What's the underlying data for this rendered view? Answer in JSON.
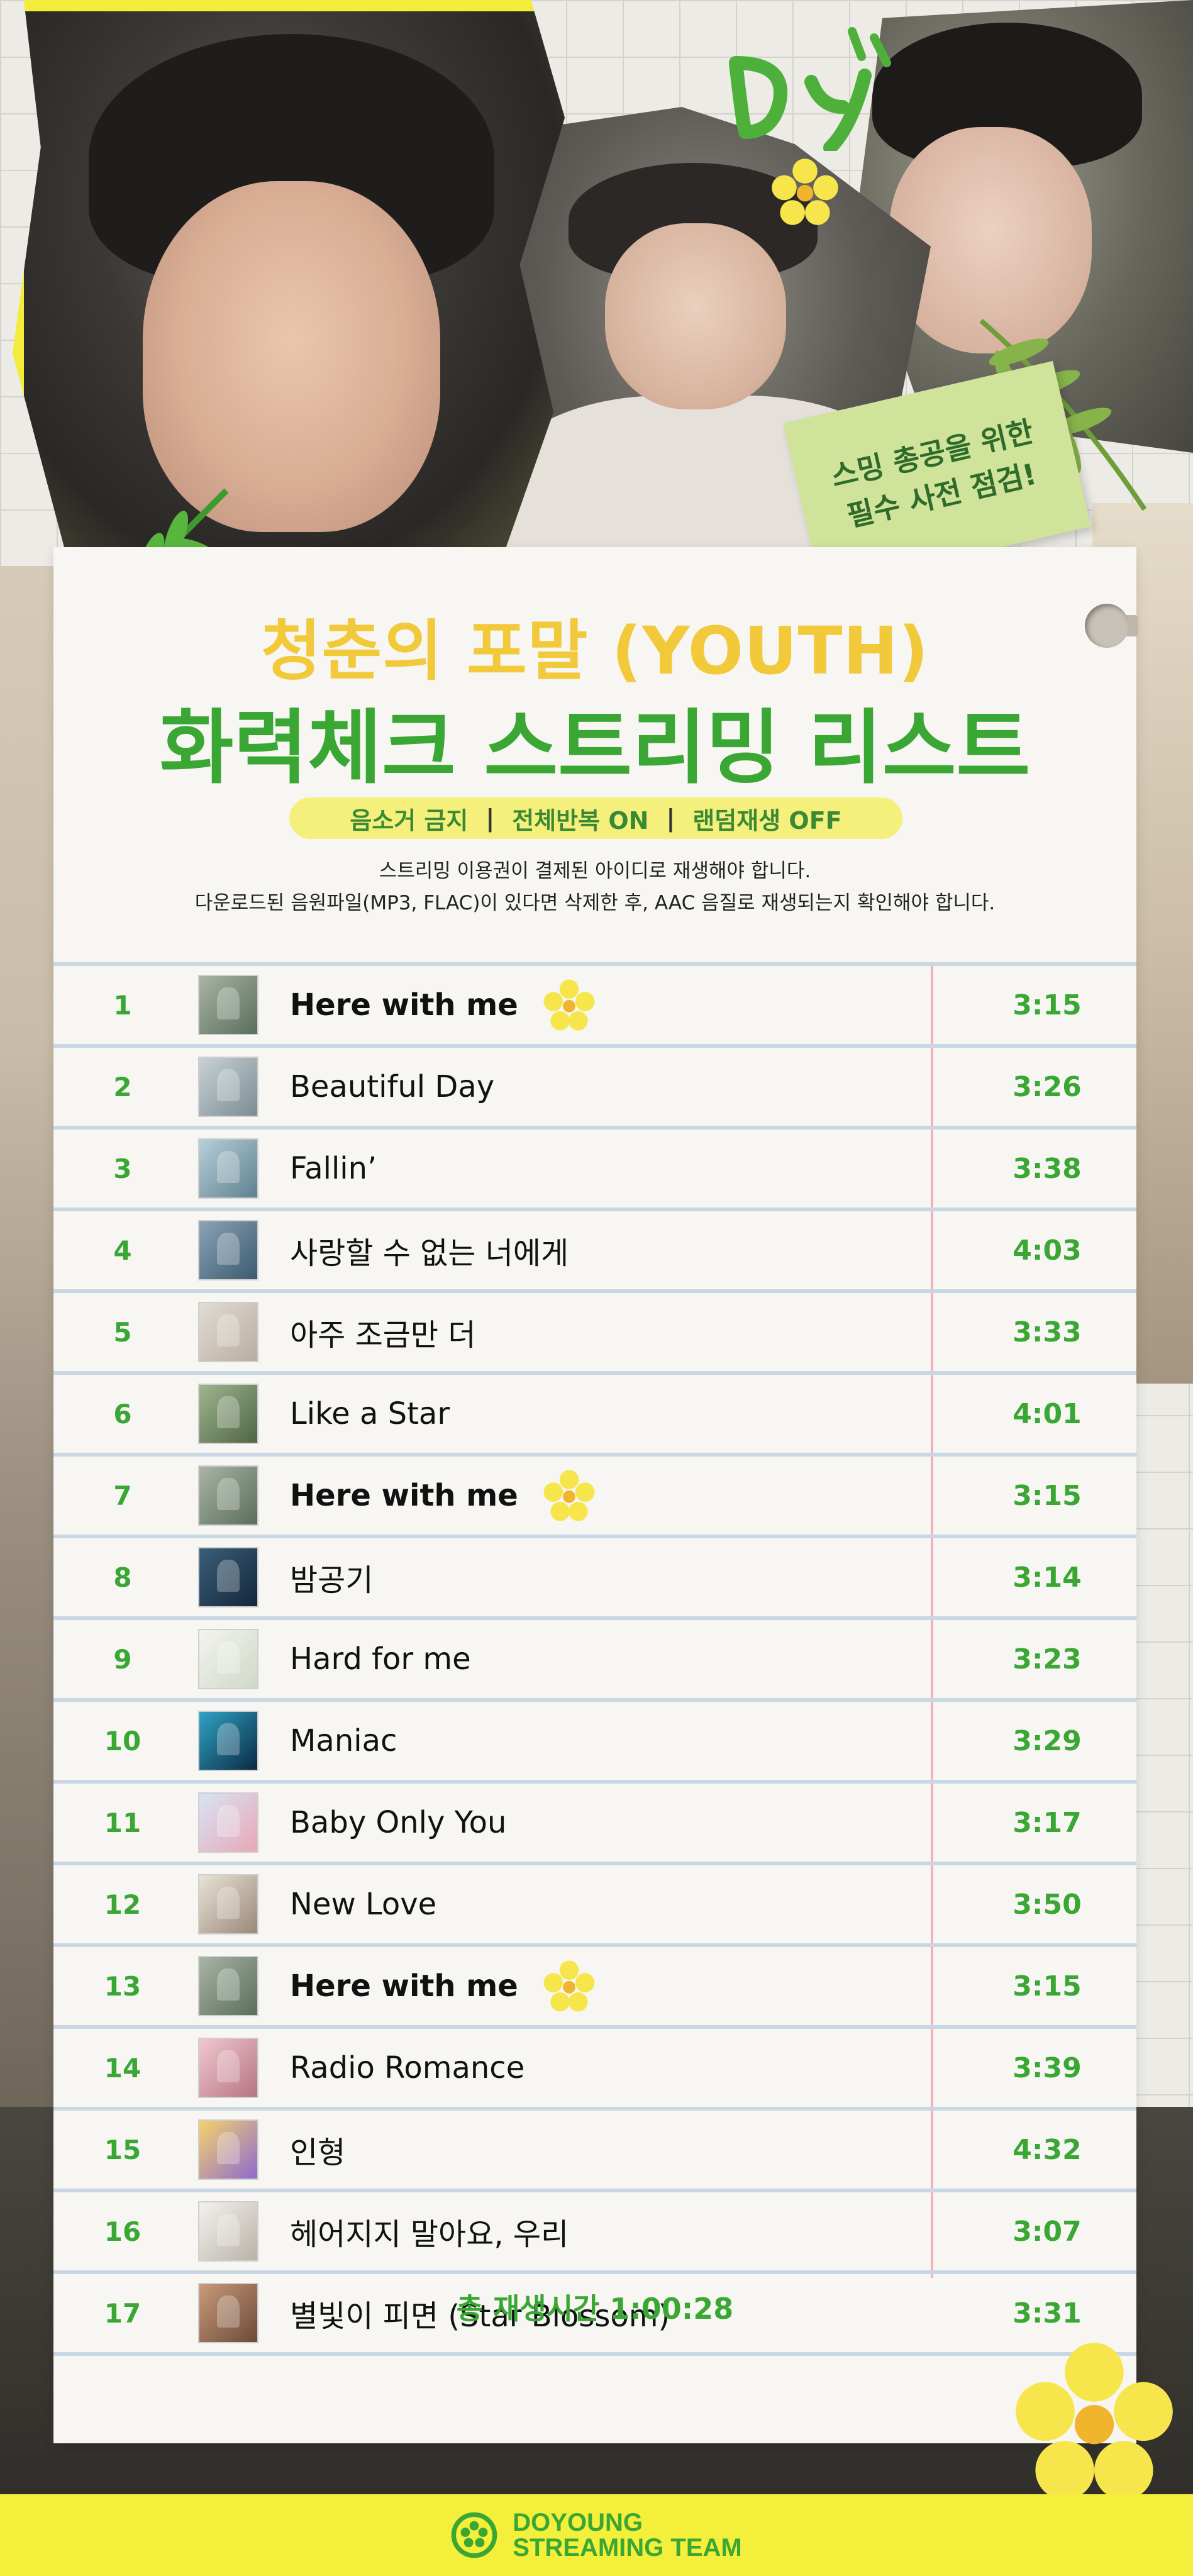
{
  "sticky_note": {
    "line1": "스밍 총공을 위한",
    "line2": "필수 사전 점검!"
  },
  "header": {
    "title_line1": "청춘의 포말 (YOUTH)",
    "title_line2": "화력체크 스트리밍 리스트"
  },
  "rules": {
    "item1": "음소거 금지",
    "item2": "전체반복 ON",
    "item3": "랜덤재생 OFF",
    "separator": "|"
  },
  "notes": {
    "line1": "스트리밍 이용권이 결제된 아이디로 재생해야 합니다.",
    "line2": "다운로드된 음원파일(MP3, FLAC)이 있다면 삭제한 후, AAC 음질로 재생되는지 확인해야 합니다."
  },
  "tracks": [
    {
      "num": "1",
      "title": "Here with me",
      "time": "3:15",
      "highlight": true,
      "c1": "#a9b4a6",
      "c2": "#5a6e5b"
    },
    {
      "num": "2",
      "title": "Beautiful Day",
      "time": "3:26",
      "highlight": false,
      "c1": "#c9d2d6",
      "c2": "#7a8c93"
    },
    {
      "num": "3",
      "title": "Fallin’",
      "time": "3:38",
      "highlight": false,
      "c1": "#b8cfd8",
      "c2": "#5e8190"
    },
    {
      "num": "4",
      "title": "사랑할 수 없는 너에게",
      "time": "4:03",
      "highlight": false,
      "c1": "#8aa3b5",
      "c2": "#3d5a70"
    },
    {
      "num": "5",
      "title": "아주 조금만 더",
      "time": "3:33",
      "highlight": false,
      "c1": "#e2dcd4",
      "c2": "#b8ada1"
    },
    {
      "num": "6",
      "title": "Like a Star",
      "time": "4:01",
      "highlight": false,
      "c1": "#9fb58f",
      "c2": "#4d6644"
    },
    {
      "num": "7",
      "title": "Here with me",
      "time": "3:15",
      "highlight": true,
      "c1": "#a9b4a6",
      "c2": "#5a6e5b"
    },
    {
      "num": "8",
      "title": "밤공기",
      "time": "3:14",
      "highlight": false,
      "c1": "#3a5f7a",
      "c2": "#14263a"
    },
    {
      "num": "9",
      "title": "Hard for me",
      "time": "3:23",
      "highlight": false,
      "c1": "#f3f3ef",
      "c2": "#cfd9c8"
    },
    {
      "num": "10",
      "title": "Maniac",
      "time": "3:29",
      "highlight": false,
      "c1": "#2fa3c5",
      "c2": "#0b2a44"
    },
    {
      "num": "11",
      "title": "Baby Only You",
      "time": "3:17",
      "highlight": false,
      "c1": "#d7e4f2",
      "c2": "#e8a7b8"
    },
    {
      "num": "12",
      "title": "New Love",
      "time": "3:50",
      "highlight": false,
      "c1": "#e9e2d6",
      "c2": "#9a8878"
    },
    {
      "num": "13",
      "title": "Here with me",
      "time": "3:15",
      "highlight": true,
      "c1": "#a9b4a6",
      "c2": "#5a6e5b"
    },
    {
      "num": "14",
      "title": "Radio Romance",
      "time": "3:39",
      "highlight": false,
      "c1": "#f0c8cf",
      "c2": "#b87484"
    },
    {
      "num": "15",
      "title": "인형",
      "time": "4:32",
      "highlight": false,
      "c1": "#f5d36a",
      "c2": "#8f6ad0"
    },
    {
      "num": "16",
      "title": "헤어지지 말아요, 우리",
      "time": "3:07",
      "highlight": false,
      "c1": "#f4f2ee",
      "c2": "#b9b2a8"
    },
    {
      "num": "17",
      "title": "별빛이 피면 (Star Blossom)",
      "time": "3:31",
      "highlight": false,
      "c1": "#c89a7a",
      "c2": "#6c4a38"
    }
  ],
  "total": "총 재생시간 1:00:28",
  "footer": {
    "line1": "DOYOUNG",
    "line2": "STREAMING TEAM"
  },
  "doodle": "Dy",
  "colors": {
    "accent_green": "#3aa634",
    "accent_yellow": "#f2c93a",
    "highlight_yellow": "#f4ef3b"
  },
  "icons": {
    "flower": "flower-icon",
    "logo": "doyoung-logo-icon",
    "fern": "fern-icon"
  }
}
